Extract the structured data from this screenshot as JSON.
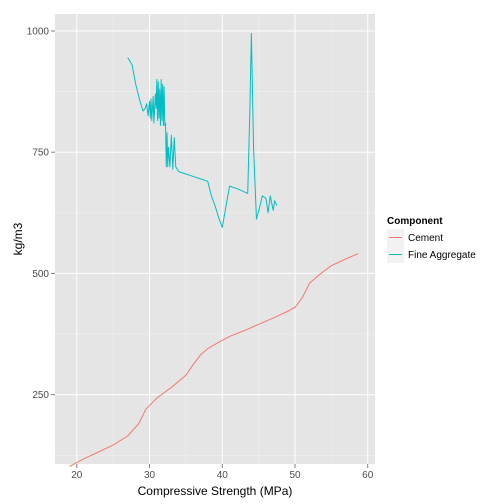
{
  "chart_data": {
    "type": "line",
    "title": "",
    "xlabel": "Compressive Strength (MPa)",
    "ylabel": "kg/m3",
    "xlim": [
      17.0,
      61.0
    ],
    "ylim": [
      107,
      1035
    ],
    "xticks": [
      20,
      30,
      40,
      50,
      60
    ],
    "yticks": [
      250,
      500,
      750,
      1000
    ],
    "x_tick_labels": [
      "20",
      "30",
      "40",
      "50",
      "60"
    ],
    "y_tick_labels": [
      "250",
      "500",
      "750",
      "1000"
    ],
    "grid": true,
    "legend": {
      "title": "Component",
      "position": "right"
    },
    "series": [
      {
        "name": "Cement",
        "color": "#F8766D",
        "x": [
          19.0,
          21.0,
          23.0,
          25.0,
          27.0,
          28.5,
          29.5,
          31.0,
          33.0,
          35.0,
          36.0,
          37.0,
          38.0,
          39.5,
          41.0,
          43.0,
          45.0,
          47.0,
          49.0,
          50.0,
          51.0,
          52.0,
          53.0,
          54.0,
          55.0,
          57.0,
          58.7
        ],
        "values": [
          102,
          118,
          132,
          146,
          165,
          190,
          220,
          243,
          265,
          290,
          312,
          332,
          345,
          358,
          370,
          382,
          395,
          408,
          422,
          430,
          450,
          480,
          493,
          505,
          516,
          530,
          541
        ]
      },
      {
        "name": "Fine Aggregate",
        "color": "#00BFC4",
        "x": [
          27.0,
          27.6,
          28.1,
          28.6,
          29.1,
          29.4,
          29.6,
          29.8,
          30.0,
          30.1,
          30.2,
          30.3,
          30.5,
          30.6,
          30.8,
          30.9,
          31.0,
          31.1,
          31.2,
          31.3,
          31.4,
          31.5,
          31.6,
          31.7,
          31.8,
          31.9,
          32.0,
          32.1,
          32.2,
          32.3,
          32.4,
          32.5,
          32.6,
          32.8,
          33.0,
          33.2,
          33.4,
          33.6,
          34.0,
          35.0,
          36.0,
          37.0,
          38.0,
          38.5,
          39.0,
          39.5,
          40.0,
          41.0,
          42.0,
          43.5,
          43.8,
          44.0,
          44.3,
          44.7,
          45.2,
          45.5,
          46.0,
          46.3,
          46.6,
          47.0,
          47.2,
          47.5
        ],
        "values": [
          945,
          930,
          890,
          860,
          835,
          840,
          850,
          825,
          855,
          820,
          860,
          815,
          865,
          810,
          870,
          840,
          900,
          815,
          895,
          820,
          880,
          805,
          900,
          815,
          890,
          805,
          885,
          805,
          810,
          720,
          790,
          720,
          760,
          720,
          785,
          715,
          780,
          720,
          710,
          705,
          700,
          695,
          690,
          660,
          640,
          615,
          595,
          680,
          675,
          665,
          840,
          995,
          760,
          612,
          640,
          660,
          655,
          625,
          660,
          630,
          650,
          640
        ]
      }
    ]
  }
}
